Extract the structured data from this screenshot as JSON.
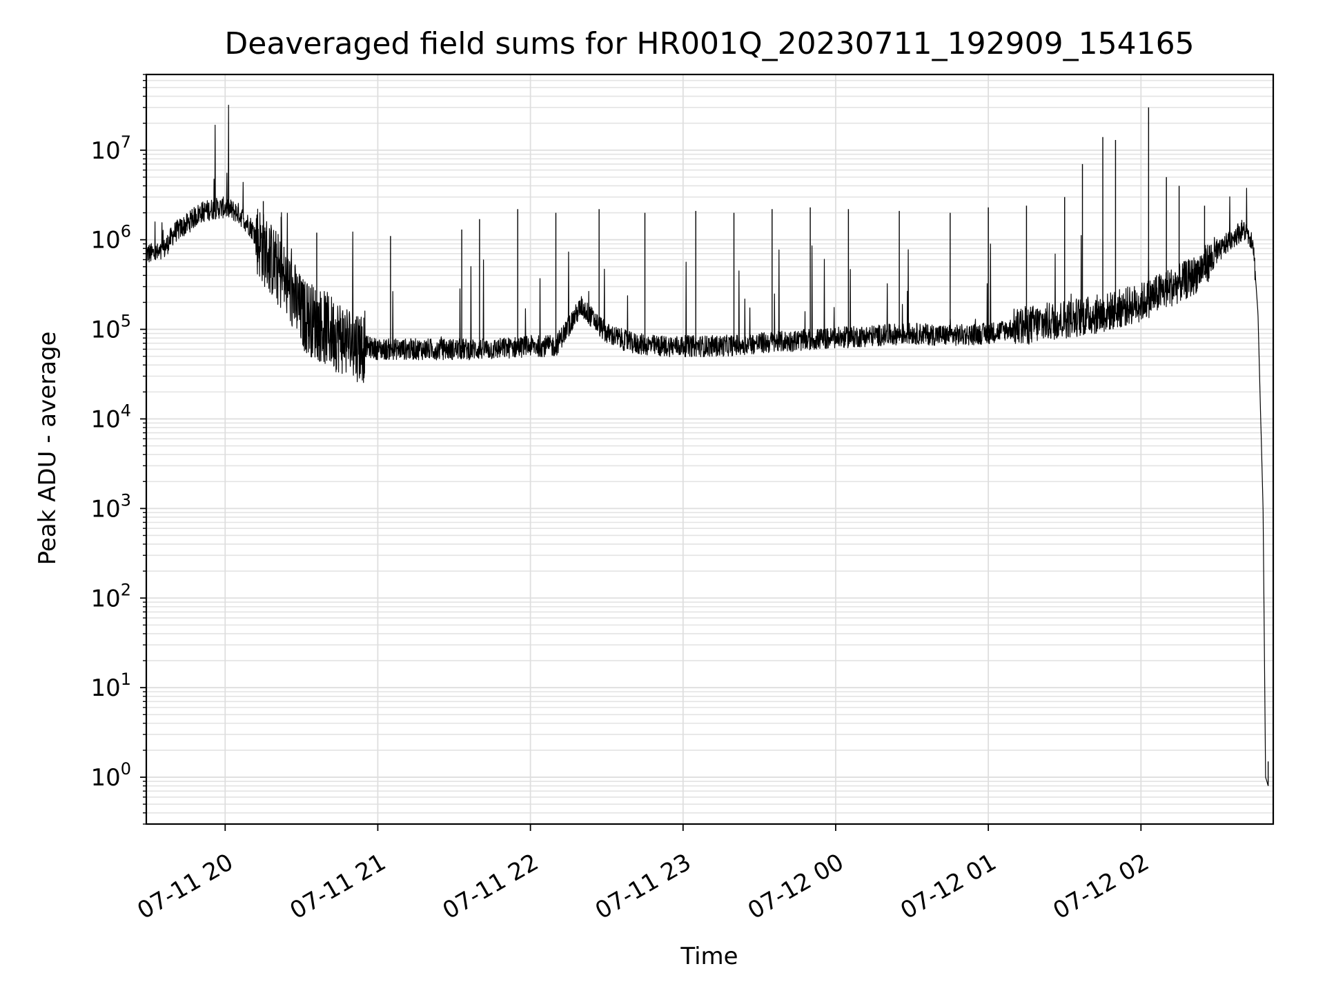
{
  "chart_data": {
    "type": "line",
    "title": "Deaveraged field sums for HR001Q_20230711_192909_154165",
    "xlabel": "Time",
    "ylabel": "Peak ADU - average",
    "yscale": "log",
    "ylim": [
      0.3,
      70000000
    ],
    "xlim": [
      "07-11 19:29",
      "07-12 02:52"
    ],
    "grid": true,
    "line_color": "#000000",
    "x_ticks": [
      {
        "label": "07-11 20",
        "value": "07-11 20:00"
      },
      {
        "label": "07-11 21",
        "value": "07-11 21:00"
      },
      {
        "label": "07-11 22",
        "value": "07-11 22:00"
      },
      {
        "label": "07-11 23",
        "value": "07-11 23:00"
      },
      {
        "label": "07-12 00",
        "value": "07-12 00:00"
      },
      {
        "label": "07-12 01",
        "value": "07-12 01:00"
      },
      {
        "label": "07-12 02",
        "value": "07-12 02:00"
      }
    ],
    "y_ticks": [
      {
        "base": "10",
        "exp": "0",
        "value": 1
      },
      {
        "base": "10",
        "exp": "1",
        "value": 10
      },
      {
        "base": "10",
        "exp": "2",
        "value": 100
      },
      {
        "base": "10",
        "exp": "3",
        "value": 1000
      },
      {
        "base": "10",
        "exp": "4",
        "value": 10000
      },
      {
        "base": "10",
        "exp": "5",
        "value": 100000
      },
      {
        "base": "10",
        "exp": "6",
        "value": 1000000
      },
      {
        "base": "10",
        "exp": "7",
        "value": 10000000
      }
    ],
    "series": [
      {
        "x": [
          "07-11 19:29",
          "07-11 19:35",
          "07-11 19:40",
          "07-11 19:45",
          "07-11 19:50",
          "07-11 19:55",
          "07-11 20:00",
          "07-11 20:05",
          "07-11 20:10",
          "07-11 20:15",
          "07-11 20:20",
          "07-11 20:25",
          "07-11 20:30",
          "07-11 20:40",
          "07-11 20:50",
          "07-11 21:00",
          "07-11 21:15",
          "07-11 21:30",
          "07-11 21:45",
          "07-11 22:00",
          "07-11 22:10",
          "07-11 22:20",
          "07-11 22:30",
          "07-11 22:40",
          "07-11 22:50",
          "07-11 23:00",
          "07-11 23:15",
          "07-11 23:30",
          "07-11 23:45",
          "07-12 00:00",
          "07-12 00:15",
          "07-12 00:30",
          "07-12 00:45",
          "07-12 01:00",
          "07-12 01:15",
          "07-12 01:30",
          "07-12 01:45",
          "07-12 02:00",
          "07-12 02:10",
          "07-12 02:20",
          "07-12 02:30",
          "07-12 02:35",
          "07-12 02:40",
          "07-12 02:44",
          "07-12 02:46",
          "07-12 02:48",
          "07-12 02:49",
          "07-12 02:50"
        ],
        "y": [
          700000,
          700000,
          1200000,
          1500000,
          2000000,
          2200000,
          2300000,
          2000000,
          1400000,
          800000,
          500000,
          300000,
          150000,
          100000,
          70000,
          60000,
          60000,
          60000,
          60000,
          65000,
          65000,
          180000,
          90000,
          70000,
          65000,
          65000,
          65000,
          70000,
          75000,
          80000,
          85000,
          90000,
          85000,
          90000,
          110000,
          130000,
          150000,
          200000,
          280000,
          380000,
          700000,
          1000000,
          1300000,
          1000000,
          150000,
          1000,
          1,
          0.8
        ]
      }
    ],
    "spikes": [
      {
        "x": "07-11 19:47",
        "y": 2200000
      },
      {
        "x": "07-11 20:15",
        "y": 2700000
      },
      {
        "x": "07-11 20:22",
        "y": 1800000
      },
      {
        "x": "07-11 20:36",
        "y": 1200000
      },
      {
        "x": "07-11 21:05",
        "y": 1100000
      },
      {
        "x": "07-11 21:33",
        "y": 1300000
      },
      {
        "x": "07-11 21:40",
        "y": 1700000
      },
      {
        "x": "07-11 21:55",
        "y": 2200000
      },
      {
        "x": "07-11 22:10",
        "y": 2000000
      },
      {
        "x": "07-11 22:27",
        "y": 2200000
      },
      {
        "x": "07-11 22:45",
        "y": 2000000
      },
      {
        "x": "07-11 23:05",
        "y": 2100000
      },
      {
        "x": "07-11 23:20",
        "y": 2000000
      },
      {
        "x": "07-11 23:35",
        "y": 2200000
      },
      {
        "x": "07-11 23:50",
        "y": 2300000
      },
      {
        "x": "07-12 00:05",
        "y": 2200000
      },
      {
        "x": "07-12 00:25",
        "y": 2100000
      },
      {
        "x": "07-12 00:45",
        "y": 2000000
      },
      {
        "x": "07-12 01:00",
        "y": 2300000
      },
      {
        "x": "07-12 01:15",
        "y": 2400000
      },
      {
        "x": "07-12 01:30",
        "y": 3000000
      },
      {
        "x": "07-12 01:37",
        "y": 7000000
      },
      {
        "x": "07-12 01:45",
        "y": 14000000
      },
      {
        "x": "07-12 01:50",
        "y": 13000000
      },
      {
        "x": "07-12 02:03",
        "y": 30000000
      },
      {
        "x": "07-12 02:10",
        "y": 5000000
      },
      {
        "x": "07-12 02:15",
        "y": 4000000
      },
      {
        "x": "07-12 02:25",
        "y": 2400000
      },
      {
        "x": "07-12 02:50",
        "y": 1.5
      }
    ]
  }
}
